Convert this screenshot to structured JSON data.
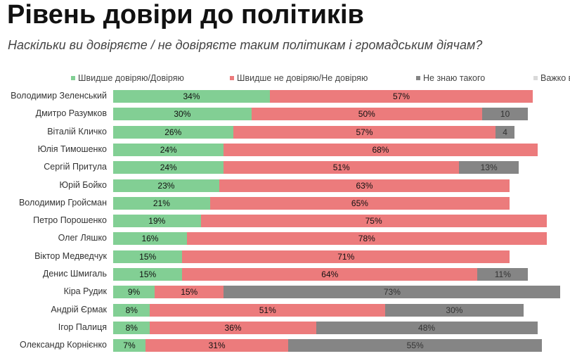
{
  "title": "Рівень довіри до політиків",
  "subtitle": "Наскільки ви довіряєте / не довіряєте таким політикам і громадським діячам?",
  "colors": {
    "trust": "#82cf94",
    "distrust": "#ec7b7c",
    "unknown": "#858585",
    "hard": "#d9d9d9"
  },
  "chart_data": {
    "type": "bar",
    "orientation": "horizontal",
    "stacked": true,
    "xlim": [
      0,
      100
    ],
    "legend_position": "top",
    "categories": [
      "Володимир Зеленський",
      "Дмитро Разумков",
      "Віталій Кличко",
      "Юлія Тимошенко",
      "Сергій Притула",
      "Юрій Бойко",
      "Володимир Гройсман",
      "Петро Порошенко",
      "Олег Ляшко",
      "Віктор Медведчук",
      "Денис Шмигаль",
      "Кіра Рудик",
      "Андрій Єрмак",
      "Ігор Палиця",
      "Олександр Корнієнко"
    ],
    "series": [
      {
        "name": "Швидше довіряю/Довіряю",
        "color_key": "trust",
        "values": [
          34,
          30,
          26,
          24,
          24,
          23,
          21,
          19,
          16,
          15,
          15,
          9,
          8,
          8,
          7
        ]
      },
      {
        "name": "Швидше не довіряю/Не довіряю",
        "color_key": "distrust",
        "values": [
          57,
          50,
          57,
          68,
          51,
          63,
          65,
          75,
          78,
          71,
          64,
          15,
          51,
          36,
          31
        ]
      },
      {
        "name": "Не знаю такого",
        "color_key": "unknown",
        "values": [
          null,
          10,
          4,
          null,
          13,
          null,
          null,
          null,
          null,
          null,
          11,
          73,
          30,
          48,
          55
        ]
      },
      {
        "name": "Важко в",
        "color_key": "hard",
        "values": [
          null,
          null,
          null,
          null,
          null,
          null,
          null,
          null,
          null,
          null,
          null,
          null,
          null,
          null,
          null
        ]
      }
    ],
    "value_labels": [
      [
        "34%",
        "57%",
        "",
        ""
      ],
      [
        "30%",
        "50%",
        "10",
        ""
      ],
      [
        "26%",
        "57%",
        "4",
        ""
      ],
      [
        "24%",
        "68%",
        "",
        ""
      ],
      [
        "24%",
        "51%",
        "13%",
        ""
      ],
      [
        "23%",
        "63%",
        "",
        ""
      ],
      [
        "21%",
        "65%",
        "",
        ""
      ],
      [
        "19%",
        "75%",
        "",
        ""
      ],
      [
        "16%",
        "78%",
        "",
        ""
      ],
      [
        "15%",
        "71%",
        "",
        ""
      ],
      [
        "15%",
        "64%",
        "11%",
        ""
      ],
      [
        "9%",
        "15%",
        "73%",
        ""
      ],
      [
        "8%",
        "51%",
        "30%",
        ""
      ],
      [
        "8%",
        "36%",
        "48%",
        ""
      ],
      [
        "7%",
        "31%",
        "55%",
        ""
      ]
    ]
  }
}
